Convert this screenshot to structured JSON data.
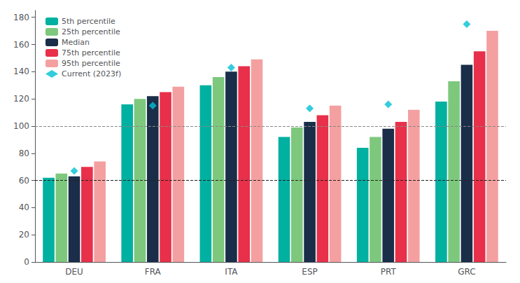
{
  "chart_data": {
    "type": "bar",
    "categories": [
      "DEU",
      "FRA",
      "ITA",
      "ESP",
      "PRT",
      "GRC"
    ],
    "series": [
      {
        "name": "5th percentile",
        "color": "#00b0a0",
        "values": [
          62,
          116,
          130,
          92,
          84,
          118
        ]
      },
      {
        "name": "25th percentile",
        "color": "#7dc87d",
        "values": [
          65,
          120,
          136,
          99,
          92,
          133
        ]
      },
      {
        "name": "Median",
        "color": "#1a2e4a",
        "values": [
          63,
          122,
          140,
          103,
          98,
          145
        ]
      },
      {
        "name": "75th percentile",
        "color": "#e8304a",
        "values": [
          70,
          125,
          144,
          108,
          103,
          155
        ]
      },
      {
        "name": "95th percentile",
        "color": "#f4a0a0",
        "values": [
          74,
          129,
          149,
          115,
          112,
          170
        ]
      },
      {
        "name": "Current (2023f)",
        "type": "scatter",
        "marker": "diamond",
        "color": "#00c0d4",
        "values": [
          67,
          115,
          143,
          113,
          116,
          175
        ]
      }
    ],
    "hlines": [
      {
        "value": 100,
        "color": "#888888",
        "line_style": "dashed"
      },
      {
        "value": 60,
        "color": "#222222",
        "line_style": "dashed"
      }
    ],
    "ylim": [
      0,
      185
    ],
    "yticks": [
      0,
      20,
      40,
      60,
      80,
      100,
      120,
      140,
      160,
      180
    ],
    "grid": false,
    "legend": "upper left"
  }
}
